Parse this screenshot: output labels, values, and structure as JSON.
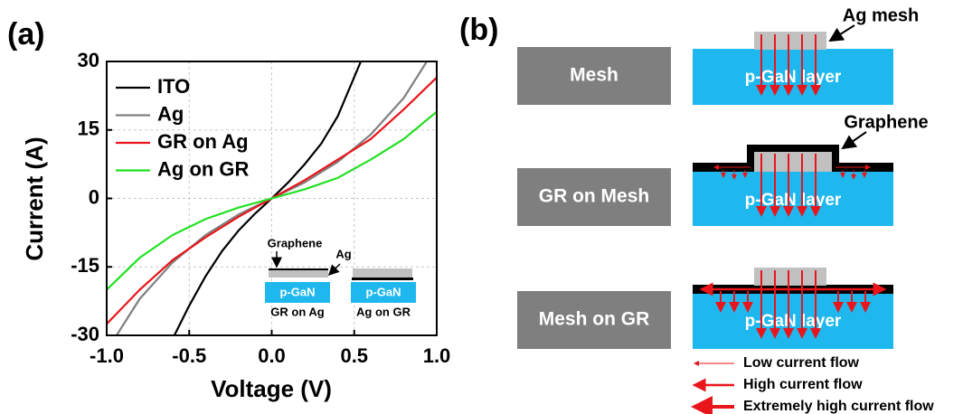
{
  "chart_data": {
    "type": "line",
    "panel_label": "(a)",
    "xlabel": "Voltage (V)",
    "ylabel": "Current (A)",
    "xlim": [
      -1,
      1
    ],
    "ylim": [
      -30,
      30
    ],
    "xticks": [
      {
        "value": -1,
        "label": "-1.0"
      },
      -0.5,
      {
        "value": 0,
        "label": "0.0"
      },
      0.5,
      {
        "value": 1,
        "label": "1.0"
      }
    ],
    "yticks": [
      -30,
      -15,
      0,
      15,
      30
    ],
    "grid": true,
    "legend": "upper left",
    "series": [
      {
        "name": "ITO",
        "color": "#000000",
        "x": [
          -0.59,
          -0.5,
          -0.4,
          -0.3,
          -0.2,
          -0.1,
          0,
          0.1,
          0.2,
          0.3,
          0.4,
          0.54
        ],
        "values": [
          -30,
          -23.5,
          -17,
          -11.5,
          -7,
          -3.3,
          0,
          3.5,
          7.5,
          12,
          18,
          30
        ]
      },
      {
        "name": "Ag",
        "color": "#808080",
        "x": [
          -0.94,
          -0.8,
          -0.6,
          -0.4,
          -0.2,
          0,
          0.2,
          0.4,
          0.6,
          0.8,
          0.94
        ],
        "values": [
          -30,
          -22,
          -14,
          -8,
          -3.5,
          0,
          3.5,
          8,
          14,
          22,
          30
        ]
      },
      {
        "name": "GR on Ag",
        "color": "#e8161b",
        "x": [
          -1,
          -0.8,
          -0.6,
          -0.4,
          -0.2,
          0,
          0.2,
          0.4,
          0.6,
          0.8,
          1
        ],
        "values": [
          -27.5,
          -20,
          -13.5,
          -8.5,
          -4,
          0,
          4,
          8.5,
          13,
          19.5,
          26.5
        ]
      },
      {
        "name": "Ag on GR",
        "color": "#22e022",
        "x": [
          -1,
          -0.8,
          -0.6,
          -0.4,
          -0.2,
          0,
          0.2,
          0.4,
          0.6,
          0.8,
          1
        ],
        "values": [
          -20,
          -13,
          -8,
          -4.5,
          -2,
          0,
          2,
          4.5,
          8.5,
          13,
          19
        ]
      }
    ],
    "annotations": [
      "Graphene",
      "Ag",
      "p-GaN",
      "GR on Ag",
      "p-GaN",
      "Ag on GR"
    ]
  },
  "diagram": {
    "panel_label": "(b)",
    "rows": [
      {
        "label": "Mesh",
        "layer": "p-GaN layer"
      },
      {
        "label": "GR on Mesh",
        "layer": "p-GaN layer"
      },
      {
        "label": "Mesh on GR",
        "layer": "p-GaN layer"
      }
    ],
    "callouts": [
      "Ag mesh",
      "Graphene"
    ],
    "legend": [
      "Low current flow",
      "High current flow",
      "Extremely high current flow"
    ]
  }
}
